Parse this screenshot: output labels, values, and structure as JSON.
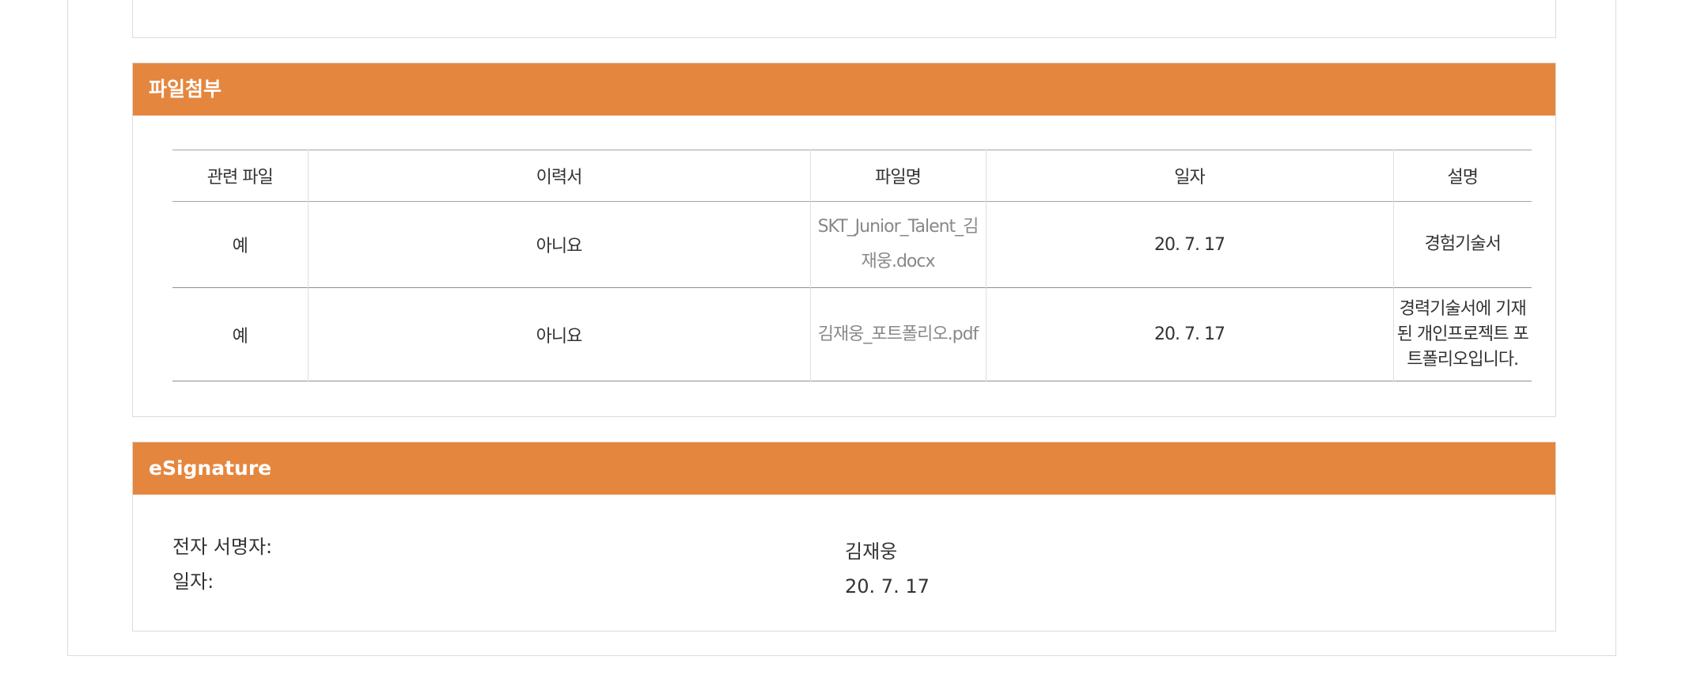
{
  "files_section": {
    "title": "파일첨부",
    "columns": [
      "관련 파일",
      "이력서",
      "파일명",
      "일자",
      "설명"
    ],
    "rows": [
      {
        "related": "예",
        "resume": "아니요",
        "filename": "SKT_Junior_Talent_김재웅.docx",
        "date": "20. 7. 17",
        "description": "경험기술서"
      },
      {
        "related": "예",
        "resume": "아니요",
        "filename": "김재웅_포트폴리오.pdf",
        "date": "20. 7. 17",
        "description": "경력기술서에 기재된 개인프로젝트 포트폴리오입니다."
      }
    ]
  },
  "signature_section": {
    "title": "eSignature",
    "signer_label": "전자 서명자:",
    "date_label": "일자:",
    "signer_value": "김재웅",
    "date_value": "20. 7. 17"
  },
  "colors": {
    "header_bg": "#e5863e",
    "header_text": "#ffffff",
    "filename_text": "#888888"
  }
}
